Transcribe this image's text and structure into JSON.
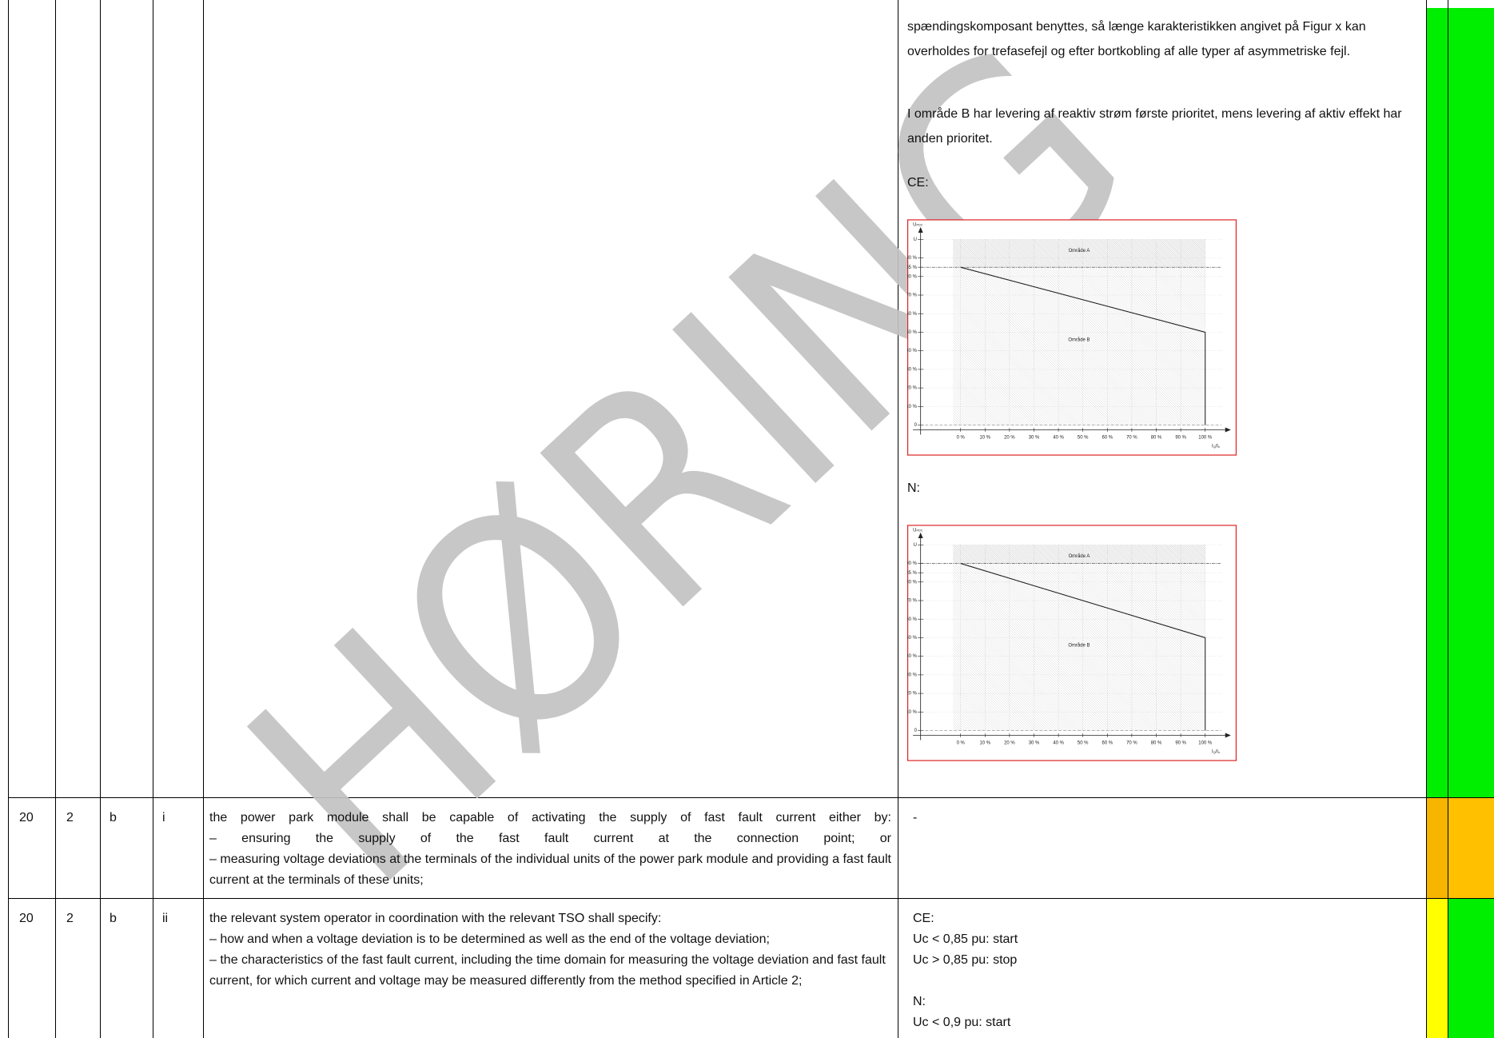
{
  "watermark": "HØRING",
  "table": {
    "rows": [
      {
        "comment": [
          "spændingskomposant benyttes, så længe karakteristikken angivet på Figur x kan overholdes for trefasefejl og efter bortkobling af alle typer af asymmetriske fejl.",
          "I område B har levering af reaktiv strøm første prioritet, mens levering af aktiv effekt har anden prioritet."
        ],
        "figures": [
          {
            "label": "CE:",
            "y_axis_label": [
              "U",
              "PDC"
            ],
            "x_axis_label": [
              "I",
              "Q",
              "/I",
              "n"
            ],
            "regions": [
              "Område A",
              "Område B"
            ],
            "xlim": [
              0,
              100
            ],
            "ylim": [
              0,
              100
            ],
            "xticks": [
              {
                "value": 0,
                "label": "0 %"
              },
              {
                "value": 10,
                "label": "10 %"
              },
              {
                "value": 20,
                "label": "20 %"
              },
              {
                "value": 30,
                "label": "30 %"
              },
              {
                "value": 40,
                "label": "40 %"
              },
              {
                "value": 50,
                "label": "50 %"
              },
              {
                "value": 60,
                "label": "60 %"
              },
              {
                "value": 70,
                "label": "70 %"
              },
              {
                "value": 80,
                "label": "80 %"
              },
              {
                "value": 90,
                "label": "90 %"
              },
              {
                "value": 100,
                "label": "100 %"
              }
            ],
            "yticks": [
              {
                "value": 100,
                "label": "U"
              },
              {
                "value": 90,
                "label": "90 %"
              },
              {
                "value": 85,
                "label": "85 %"
              },
              {
                "value": 80,
                "label": "80 %"
              },
              {
                "value": 70,
                "label": "70 %"
              },
              {
                "value": 60,
                "label": "60 %"
              },
              {
                "value": 50,
                "label": "50 %"
              },
              {
                "value": 40,
                "label": "40 %"
              },
              {
                "value": 30,
                "label": "30 %"
              },
              {
                "value": 20,
                "label": "20 %"
              },
              {
                "value": 10,
                "label": "10 %"
              },
              0
            ],
            "threshold": 85,
            "curve": {
              "x": [
                0,
                100,
                100
              ],
              "y": [
                85,
                50,
                0
              ]
            }
          },
          {
            "label": "N:",
            "y_axis_label": [
              "U",
              "PDC"
            ],
            "x_axis_label": [
              "I",
              "Q",
              "/I",
              "n"
            ],
            "regions": [
              "Område A",
              "Område B"
            ],
            "xlim": [
              0,
              100
            ],
            "ylim": [
              0,
              100
            ],
            "xticks": [
              {
                "value": 0,
                "label": "0 %"
              },
              {
                "value": 10,
                "label": "10 %"
              },
              {
                "value": 20,
                "label": "20 %"
              },
              {
                "value": 30,
                "label": "30 %"
              },
              {
                "value": 40,
                "label": "40 %"
              },
              {
                "value": 50,
                "label": "50 %"
              },
              {
                "value": 60,
                "label": "60 %"
              },
              {
                "value": 70,
                "label": "70 %"
              },
              {
                "value": 80,
                "label": "80 %"
              },
              {
                "value": 90,
                "label": "90 %"
              },
              {
                "value": 100,
                "label": "100 %"
              }
            ],
            "yticks": [
              {
                "value": 100,
                "label": "U"
              },
              {
                "value": 90,
                "label": "90 %"
              },
              {
                "value": 85,
                "label": "85 %"
              },
              {
                "value": 80,
                "label": "80 %"
              },
              {
                "value": 70,
                "label": "70 %"
              },
              {
                "value": 60,
                "label": "60 %"
              },
              {
                "value": 50,
                "label": "50 %"
              },
              {
                "value": 40,
                "label": "40 %"
              },
              {
                "value": 30,
                "label": "30 %"
              },
              {
                "value": 20,
                "label": "20 %"
              },
              {
                "value": 10,
                "label": "10 %"
              },
              0
            ],
            "threshold": 90,
            "curve": {
              "x": [
                0,
                100,
                100
              ],
              "y": [
                90,
                50,
                0
              ]
            }
          }
        ]
      },
      {
        "article": "20",
        "paragraph": "2",
        "point": "b",
        "subpoint": "i",
        "text": [
          "the power park module shall be capable of activating the supply of fast fault current either by:",
          "– ensuring the supply of the fast fault current at the connection point; or",
          "– measuring voltage deviations at the terminals of the individual units of the power park module and providing a fast fault current at the terminals of these units;"
        ],
        "comment": [
          [
            "-"
          ]
        ]
      },
      {
        "article": "20",
        "paragraph": "2",
        "point": "b",
        "subpoint": "ii",
        "text": [
          "the relevant system operator in coordination with the relevant TSO shall specify:",
          "– how and when a voltage deviation is to be determined as well as the end of the voltage deviation;",
          "– the characteristics of the fast fault current, including the time domain for measuring the voltage deviation and fast fault current, for which current and voltage may be measured differently from the method specified in Article 2;"
        ],
        "comment": [
          [
            "CE:",
            "Uc < 0,85 pu: start",
            "Uc > 0,85 pu: stop"
          ],
          [
            "N:",
            "Uc < 0,9 pu: start"
          ]
        ]
      }
    ]
  }
}
